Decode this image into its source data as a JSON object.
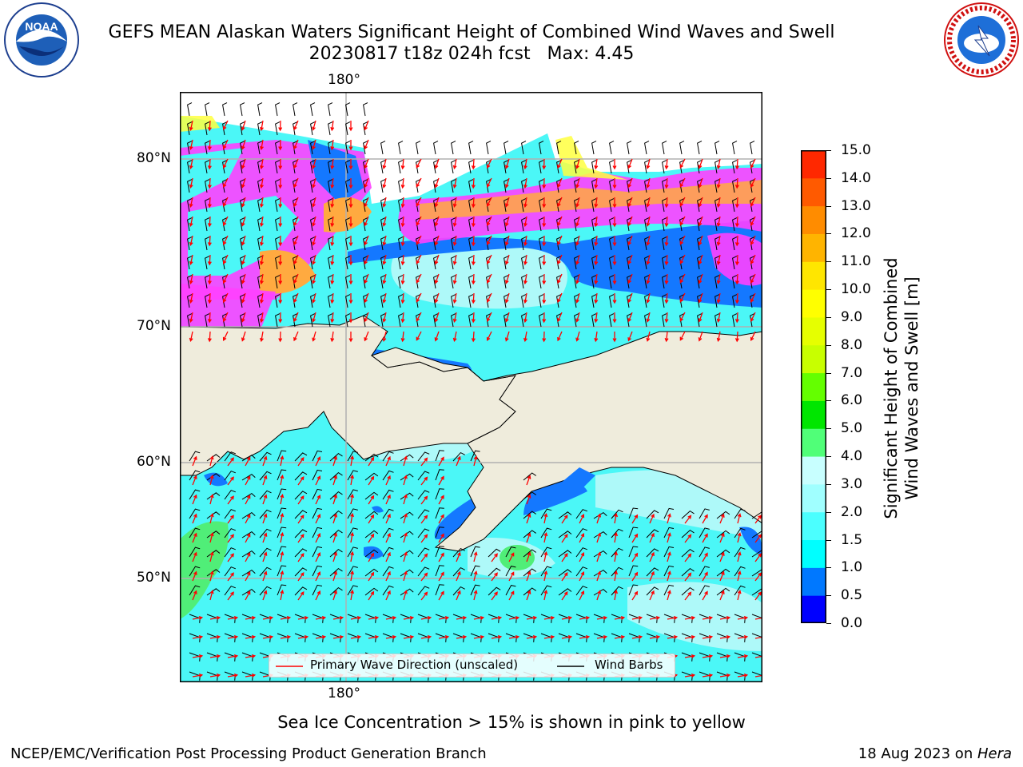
{
  "header": {
    "title": "GEFS MEAN Alaskan Waters Significant Height of Combined Wind Waves and Swell",
    "subtitle": "20230817 t18z 024h fcst   Max: 4.45"
  },
  "logos": {
    "left": {
      "icon": "noaa-logo-icon",
      "text": "NOAA"
    },
    "right": {
      "icon": "nws-logo-icon",
      "text": "NATIONAL WEATHER SERVICE"
    }
  },
  "map": {
    "lon_label_top": "180°",
    "lon_label_bottom": "180°",
    "lat_labels": [
      "80°N",
      "70°N",
      "60°N",
      "50°N"
    ],
    "colors": {
      "land": "#efecdc",
      "ocean_base": "#4bf7f7",
      "ocean_light": "#aef9f9",
      "ocean_blue": "#1478ff",
      "ice_pink": "#ff40ff",
      "ice_orange": "#ffaa40",
      "ice_yellow": "#ffff40",
      "wave_arrow": "#ff0000",
      "wind_barb": "#000000",
      "grid": "#b0b0b0"
    }
  },
  "legend": {
    "wave_label": "Primary Wave Direction (unscaled)",
    "wind_label": "Wind Barbs"
  },
  "colorbar": {
    "label_line1": "Significant Height of Combined",
    "label_line2": "Wind Waves and Swell [m]",
    "ticks": [
      "15.0",
      "14.0",
      "13.0",
      "12.0",
      "11.0",
      "10.0",
      "9.0",
      "8.0",
      "7.0",
      "6.0",
      "5.0",
      "4.0",
      "3.0",
      "2.0",
      "1.5",
      "1.0",
      "0.5",
      "0.0"
    ],
    "bands": [
      "#0000ff",
      "#0078ff",
      "#00ffff",
      "#4bffff",
      "#a0ffff",
      "#c8ffff",
      "#50ff78",
      "#00e600",
      "#64ff00",
      "#c8ff00",
      "#e6ff00",
      "#ffff00",
      "#ffe600",
      "#ffb400",
      "#ff8c00",
      "#ff5a00",
      "#ff2800"
    ]
  },
  "footer": {
    "note": "Sea Ice Concentration > 15% is shown in pink to yellow",
    "left": "NCEP/EMC/Verification Post Processing Product Generation Branch",
    "right_date": "18 Aug 2023 on ",
    "right_host": "Hera"
  }
}
